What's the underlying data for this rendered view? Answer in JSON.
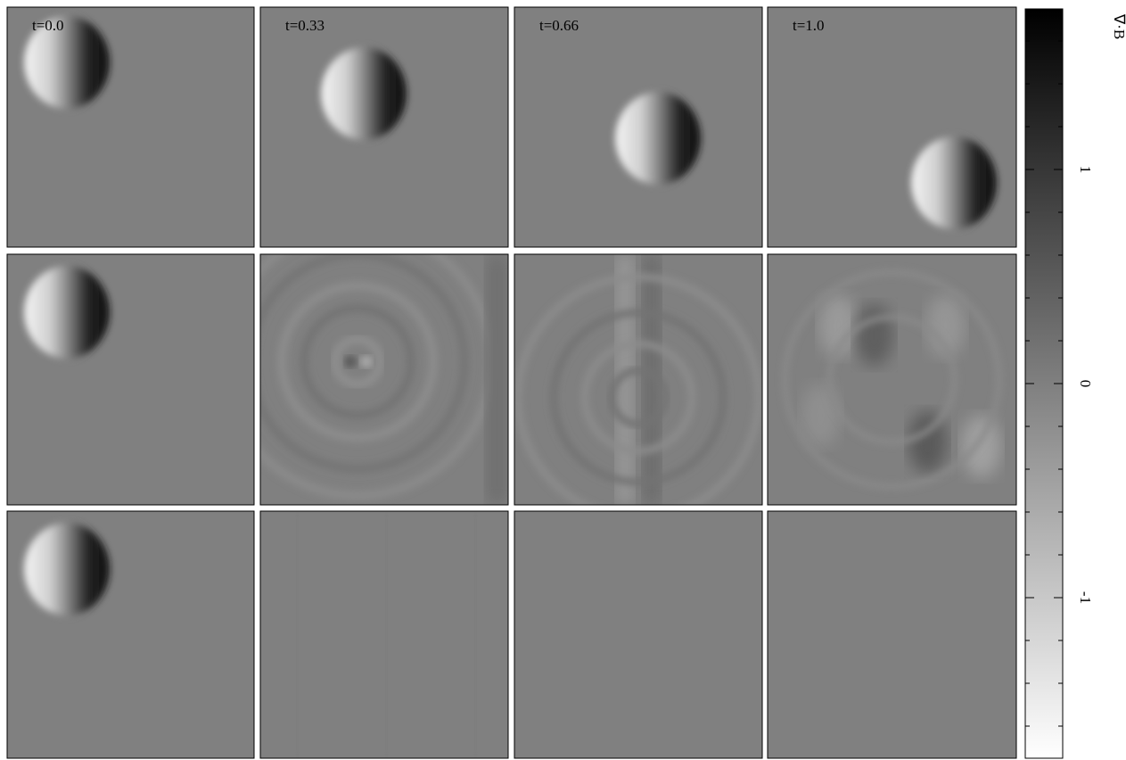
{
  "chart_data": {
    "type": "image-grid",
    "panel_titles": [
      "t=0.0",
      "t=0.33",
      "t=0.66",
      "t=1.0"
    ],
    "colorbar": {
      "label": "∇·B",
      "ylim": [
        -1.75,
        1.75
      ],
      "yticks": [
        -1,
        0,
        1
      ],
      "minor_yticks": [
        -1.6,
        -1.4,
        -1.2,
        -0.8,
        -0.6,
        -0.4,
        -0.2,
        0.2,
        0.4,
        0.6,
        0.8,
        1.2,
        1.4,
        1.6
      ],
      "colormap": [
        "#ffffff",
        "#000000"
      ]
    }
  }
}
